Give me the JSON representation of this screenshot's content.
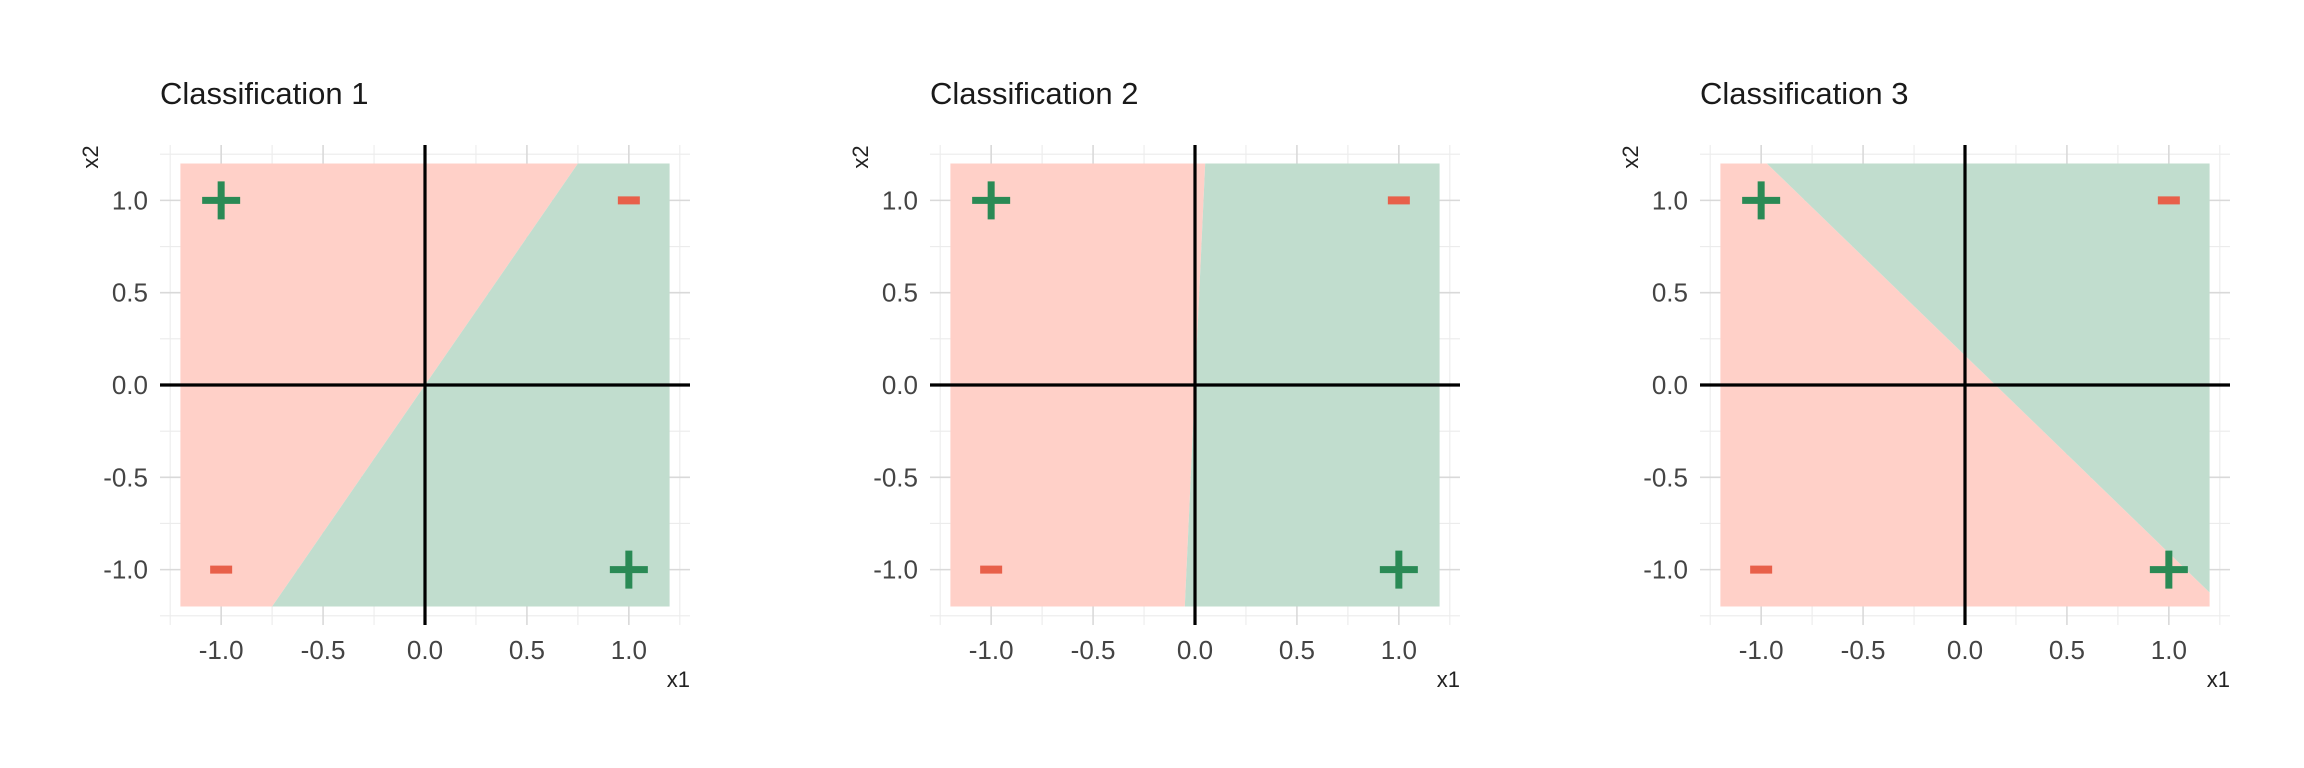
{
  "chart_data": [
    {
      "type": "scatter",
      "title": "Classification 1",
      "xlabel": "x1",
      "ylabel": "x2",
      "xlim": [
        -1.3,
        1.3
      ],
      "ylim": [
        -1.3,
        1.3
      ],
      "xticks": [
        -1.0,
        -0.5,
        0.0,
        0.5,
        1.0
      ],
      "xtick_labels": [
        "-1.0",
        "-0.5",
        "0.0",
        "0.5",
        "1.0"
      ],
      "yticks": [
        -1.0,
        -0.5,
        0.0,
        0.5,
        1.0
      ],
      "ytick_labels": [
        "-1.0",
        "-0.5",
        "0.0",
        "0.5",
        "1.0"
      ],
      "grid": true,
      "region": {
        "xmin": -1.2,
        "xmax": 1.2,
        "ymin": -1.2,
        "ymax": 1.2
      },
      "decision_boundary": {
        "slope": 1.6,
        "intercept": 0.0,
        "positive_side": "below"
      },
      "points": [
        {
          "x": -1,
          "y": 1,
          "label": "+"
        },
        {
          "x": 1,
          "y": 1,
          "label": "-"
        },
        {
          "x": -1,
          "y": -1,
          "label": "-"
        },
        {
          "x": 1,
          "y": -1,
          "label": "+"
        }
      ]
    },
    {
      "type": "scatter",
      "title": "Classification 2",
      "xlabel": "x1",
      "ylabel": "x2",
      "xlim": [
        -1.3,
        1.3
      ],
      "ylim": [
        -1.3,
        1.3
      ],
      "xticks": [
        -1.0,
        -0.5,
        0.0,
        0.5,
        1.0
      ],
      "xtick_labels": [
        "-1.0",
        "-0.5",
        "0.0",
        "0.5",
        "1.0"
      ],
      "yticks": [
        -1.0,
        -0.5,
        0.0,
        0.5,
        1.0
      ],
      "ytick_labels": [
        "-1.0",
        "-0.5",
        "0.0",
        "0.5",
        "1.0"
      ],
      "grid": true,
      "region": {
        "xmin": -1.2,
        "xmax": 1.2,
        "ymin": -1.2,
        "ymax": 1.2
      },
      "decision_boundary": {
        "slope": 24,
        "intercept": 0.0,
        "positive_side": "below"
      },
      "points": [
        {
          "x": -1,
          "y": 1,
          "label": "+"
        },
        {
          "x": 1,
          "y": 1,
          "label": "-"
        },
        {
          "x": -1,
          "y": -1,
          "label": "-"
        },
        {
          "x": 1,
          "y": -1,
          "label": "+"
        }
      ]
    },
    {
      "type": "scatter",
      "title": "Classification 3",
      "xlabel": "x1",
      "ylabel": "x2",
      "xlim": [
        -1.3,
        1.3
      ],
      "ylim": [
        -1.3,
        1.3
      ],
      "xticks": [
        -1.0,
        -0.5,
        0.0,
        0.5,
        1.0
      ],
      "xtick_labels": [
        "-1.0",
        "-0.5",
        "0.0",
        "0.5",
        "1.0"
      ],
      "yticks": [
        -1.0,
        -0.5,
        0.0,
        0.5,
        1.0
      ],
      "ytick_labels": [
        "-1.0",
        "-0.5",
        "0.0",
        "0.5",
        "1.0"
      ],
      "grid": true,
      "region": {
        "xmin": -1.2,
        "xmax": 1.2,
        "ymin": -1.2,
        "ymax": 1.2
      },
      "decision_boundary": {
        "slope": -1.07,
        "intercept": 0.16,
        "positive_side": "above"
      },
      "points": [
        {
          "x": -1,
          "y": 1,
          "label": "+"
        },
        {
          "x": 1,
          "y": 1,
          "label": "-"
        },
        {
          "x": -1,
          "y": -1,
          "label": "-"
        },
        {
          "x": 1,
          "y": -1,
          "label": "+"
        }
      ]
    }
  ],
  "colors": {
    "positive_region": "#c1ddce",
    "negative_region": "#ffd0c8",
    "positive_marker": "#2a8a55",
    "negative_marker": "#e8604a"
  }
}
